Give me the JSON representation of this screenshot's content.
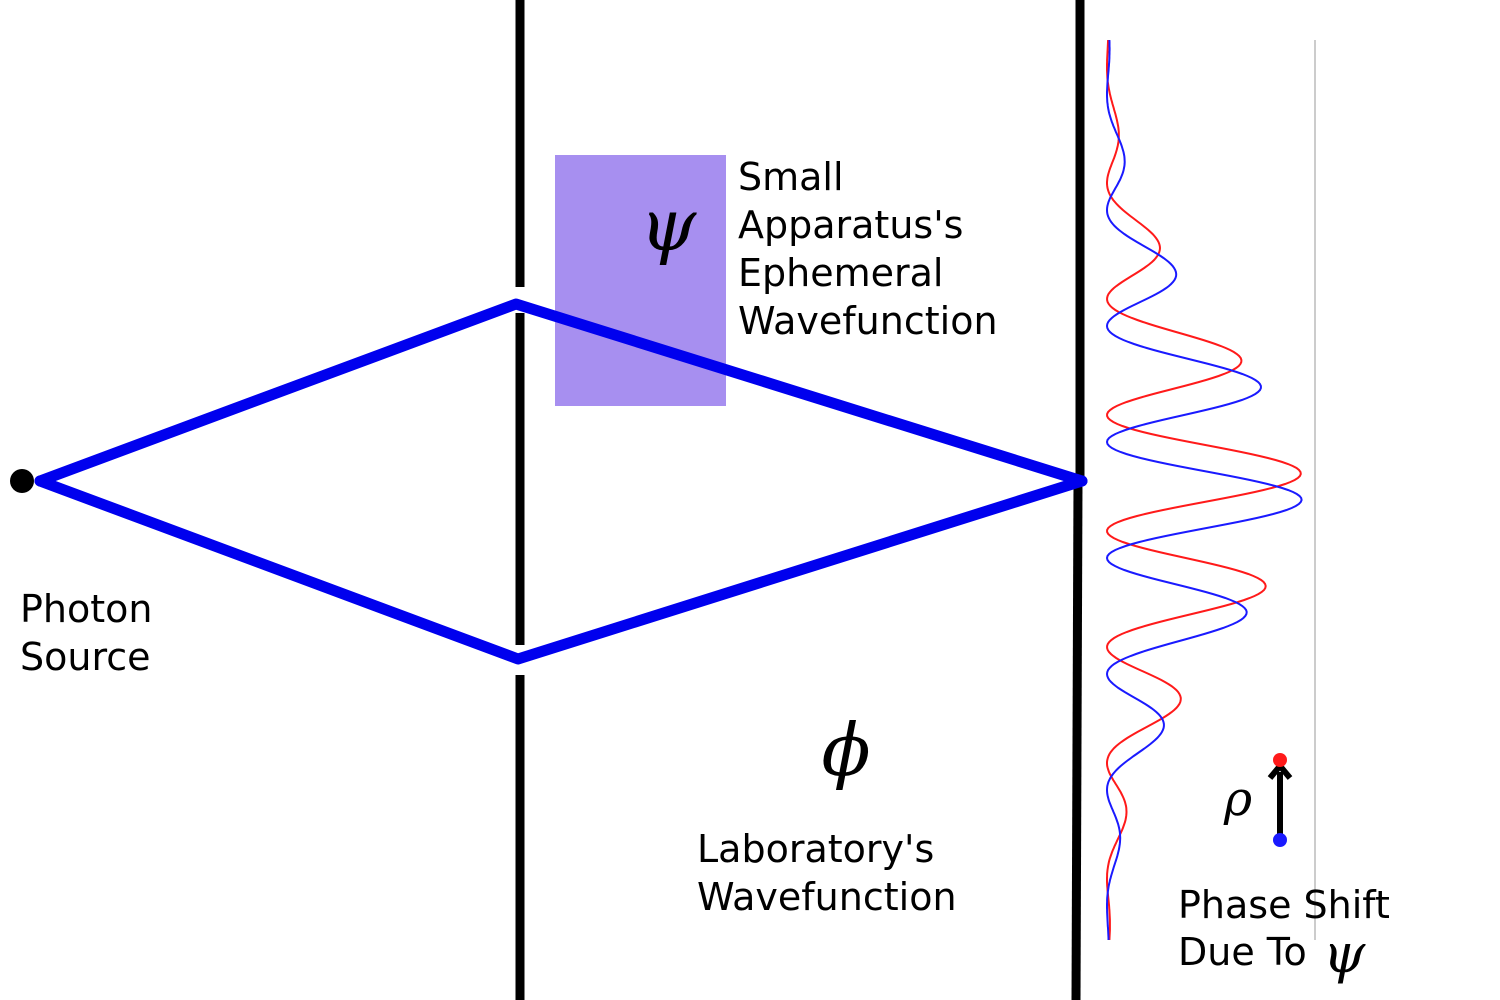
{
  "colors": {
    "beam": "#0000ee",
    "apparatus_fill": "#a78ff0",
    "wave_red": "#ff1a1a",
    "wave_blue": "#1a1aff",
    "wall": "#000000",
    "guide": "#cccccc"
  },
  "labels": {
    "photon_source": [
      "Photon",
      "Source"
    ],
    "apparatus": [
      "Small",
      "Apparatus's",
      "Ephemeral",
      "Wavefunction"
    ],
    "laboratory": [
      "Laboratory's",
      "Wavefunction"
    ],
    "phase_shift_line1": "Phase Shift",
    "phase_shift_line2": "Due To",
    "psi_symbol": "ψ",
    "phi_symbol": "ϕ",
    "rho_symbol": "ρ",
    "psi_caption_symbol": "ψ"
  },
  "icons": {
    "source": "filled-circle",
    "shift_arrow": "up-arrow-between-blue-and-red-dots"
  }
}
